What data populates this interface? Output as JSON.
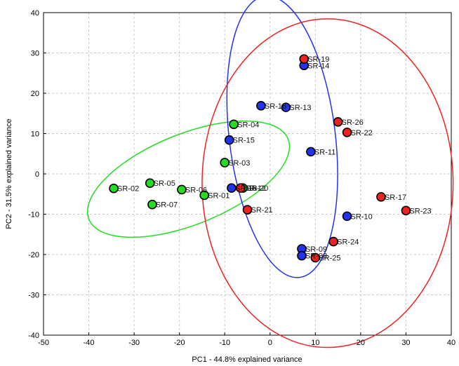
{
  "chart_data": {
    "type": "scatter",
    "title": "",
    "xlabel": "PC1 - 44.8% explained variance",
    "ylabel": "PC2 - 31.5% explained variance",
    "xlim": [
      -50,
      40
    ],
    "ylim": [
      -40,
      40
    ],
    "xticks": [
      -50,
      -40,
      -30,
      -20,
      -10,
      0,
      10,
      20,
      30,
      40
    ],
    "yticks": [
      -40,
      -30,
      -20,
      -10,
      0,
      10,
      20,
      30,
      40
    ],
    "grid": true,
    "legend": "none",
    "colors": {
      "green": "#22dd22",
      "blue": "#2233ee",
      "red": "#ee2222",
      "marker_edge": "#000000"
    },
    "series": [
      {
        "color": "green",
        "points": [
          {
            "label": "SR-02",
            "x": -34.5,
            "y": -3.6
          },
          {
            "label": "SR-05",
            "x": -26.5,
            "y": -2.3
          },
          {
            "label": "SR-07",
            "x": -26.0,
            "y": -7.6
          },
          {
            "label": "SR-06",
            "x": -19.5,
            "y": -3.9
          },
          {
            "label": "SR-01",
            "x": -14.5,
            "y": -5.3
          },
          {
            "label": "SR-03",
            "x": -10.0,
            "y": 2.8
          },
          {
            "label": "SR-04",
            "x": -8.0,
            "y": 12.3
          },
          {
            "label": "SR-20",
            "x": -6.0,
            "y": -3.5
          }
        ]
      },
      {
        "color": "blue",
        "points": [
          {
            "label": "SR-15",
            "x": -9.0,
            "y": 8.4
          },
          {
            "label": "SR-16",
            "x": -2.0,
            "y": 16.9
          },
          {
            "label": "SR-13",
            "x": 3.5,
            "y": 16.5
          },
          {
            "label": "SR-14",
            "x": 7.5,
            "y": 26.9
          },
          {
            "label": "SR-11",
            "x": 9.0,
            "y": 5.5
          },
          {
            "label": "SR-10",
            "x": 17.0,
            "y": -10.5
          },
          {
            "label": "SR-09",
            "x": 7.0,
            "y": -18.6
          },
          {
            "label": "SR-08",
            "x": 7.0,
            "y": -20.3
          },
          {
            "label": "SR-18",
            "x": -8.5,
            "y": -3.5
          }
        ]
      },
      {
        "color": "red",
        "points": [
          {
            "label": "SR-19",
            "x": 7.5,
            "y": 28.5
          },
          {
            "label": "SR-26",
            "x": 15.0,
            "y": 12.9
          },
          {
            "label": "SR-22",
            "x": 17.0,
            "y": 10.3
          },
          {
            "label": "SR-17",
            "x": 24.5,
            "y": -5.7
          },
          {
            "label": "SR-23",
            "x": 30.0,
            "y": -9.1
          },
          {
            "label": "SR-24",
            "x": 14.0,
            "y": -16.8
          },
          {
            "label": "SR-25",
            "x": 10.0,
            "y": -20.8
          },
          {
            "label": "SR-21",
            "x": -5.0,
            "y": -8.9
          },
          {
            "label": "SR-12",
            "x": -6.5,
            "y": -3.5
          }
        ]
      }
    ],
    "ellipses": [
      {
        "color": "green",
        "cx": -18,
        "cy": -1.3,
        "semi_major": 23.7,
        "semi_minor": 10.0,
        "angle_deg": 22
      },
      {
        "color": "blue",
        "cx": 2.7,
        "cy": 9.2,
        "semi_major": 31.3,
        "semi_minor": 11.7,
        "angle_deg": 97
      },
      {
        "color": "red",
        "cx": 12.7,
        "cy": -2.3,
        "semi_major": 36.3,
        "semi_minor": 27.7,
        "angle_deg": 90
      }
    ]
  }
}
